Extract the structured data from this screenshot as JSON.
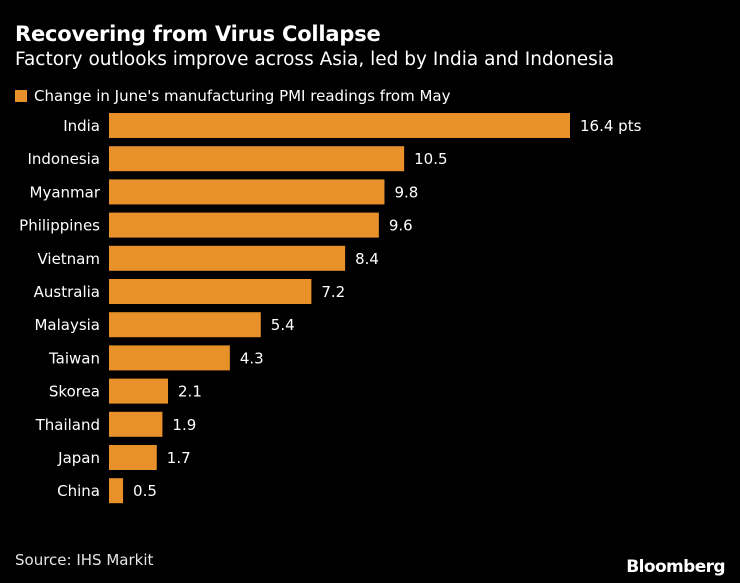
{
  "chart_data": {
    "type": "bar",
    "orientation": "horizontal",
    "title": "Recovering from Virus Collapse",
    "subtitle": "Factory outlooks improve across Asia, led by India and Indonesia",
    "legend": "Change in June's manufacturing PMI readings from May",
    "categories": [
      "India",
      "Indonesia",
      "Myanmar",
      "Philippines",
      "Vietnam",
      "Australia",
      "Malaysia",
      "Taiwan",
      "Skorea",
      "Thailand",
      "Japan",
      "China"
    ],
    "values": [
      16.4,
      10.5,
      9.8,
      9.6,
      8.4,
      7.2,
      5.4,
      4.3,
      2.1,
      1.9,
      1.7,
      0.5
    ],
    "value_labels": [
      "16.4 pts",
      "10.5",
      "9.8",
      "9.6",
      "8.4",
      "7.2",
      "5.4",
      "4.3",
      "2.1",
      "1.9",
      "1.7",
      "0.5"
    ],
    "xlim": [
      0,
      16.4
    ],
    "grid": false,
    "xlabel": "",
    "ylabel": ""
  },
  "colors": {
    "bar": "#e8912a",
    "background": "#000000",
    "text": "#ffffff"
  },
  "footer": {
    "source": "Source: IHS Markit",
    "brand": "Bloomberg"
  }
}
